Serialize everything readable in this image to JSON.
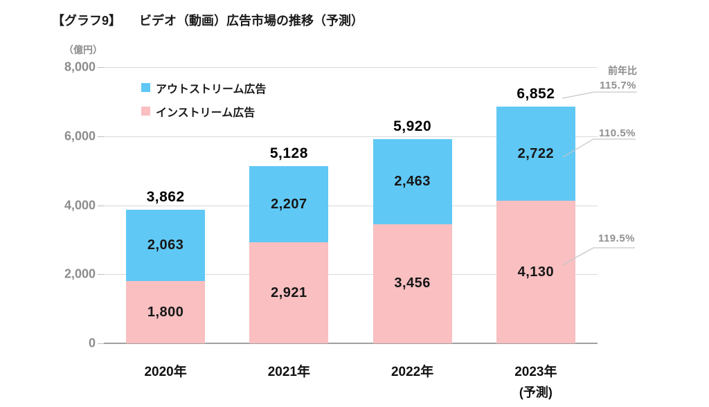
{
  "title": {
    "tag": "【グラフ9】",
    "text": "ビデオ（動画）広告市場の推移（予測）"
  },
  "chart_data": {
    "type": "bar",
    "stacked": true,
    "title": "ビデオ（動画）広告市場の推移（予測）",
    "unit_label": "（億円）",
    "categories": [
      "2020年",
      "2021年",
      "2022年",
      "2023年"
    ],
    "category_sublabels": [
      "",
      "",
      "",
      "(予測)"
    ],
    "series": [
      {
        "key": "instream",
        "name": "インストリーム広告",
        "color": "#f9bfc1",
        "values": [
          1800,
          2921,
          3456,
          4130
        ]
      },
      {
        "key": "outstream",
        "name": "アウトストリーム広告",
        "color": "#60c8f5",
        "values": [
          2063,
          2207,
          2463,
          2722
        ]
      }
    ],
    "totals": [
      3862,
      5128,
      5920,
      6852
    ],
    "ylim": [
      0,
      8000
    ],
    "yticks": [
      {
        "value": 8000,
        "label": "8,000"
      },
      {
        "value": 6000,
        "label": "6,000"
      },
      {
        "value": 4000,
        "label": "4,000"
      },
      {
        "value": 2000,
        "label": "2,000"
      },
      {
        "value": 0,
        "label": "0"
      }
    ],
    "grid": true,
    "legend_position": "inside-top-left",
    "annotations": {
      "header": "前年比",
      "items": [
        {
          "label": "115.7%",
          "applies_to": "total",
          "category": "2023年"
        },
        {
          "label": "110.5%",
          "applies_to": "アウトストリーム広告",
          "category": "2023年"
        },
        {
          "label": "119.5%",
          "applies_to": "インストリーム広告",
          "category": "2023年"
        }
      ]
    }
  }
}
